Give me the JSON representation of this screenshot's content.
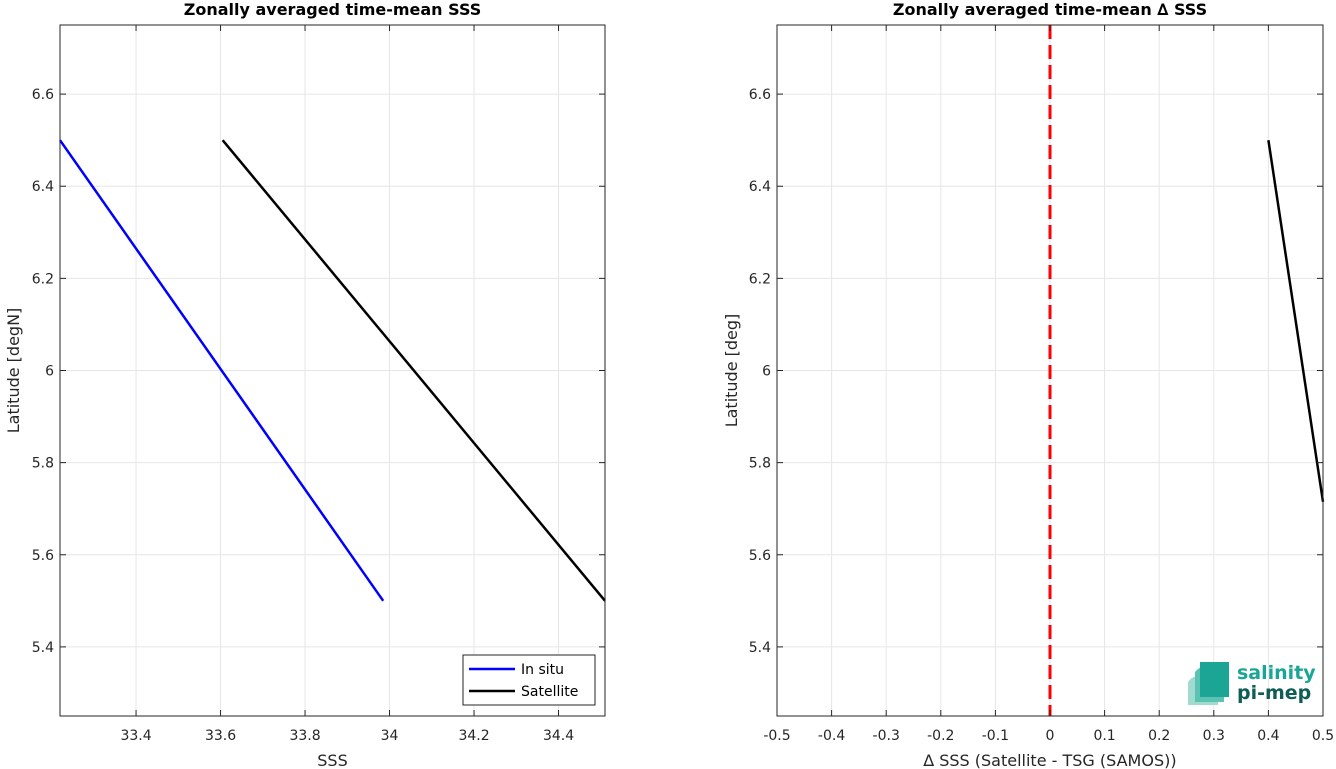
{
  "chart_data": [
    {
      "type": "line",
      "title": "Zonally averaged time-mean SSS",
      "xlabel": "SSS",
      "ylabel": "Latitude [degN]",
      "xlim": [
        33.22,
        34.51
      ],
      "ylim": [
        5.25,
        6.75
      ],
      "x_ticks": [
        "33.4",
        "33.6",
        "33.8",
        "34",
        "34.2",
        "34.4"
      ],
      "y_ticks": [
        "5.4",
        "5.6",
        "5.8",
        "6",
        "6.2",
        "6.4",
        "6.6"
      ],
      "grid": true,
      "legend_position": "bottom-right",
      "series": [
        {
          "name": "In situ",
          "color": "#0000ff",
          "x": [
            33.22,
            33.985
          ],
          "y": [
            6.5,
            5.5
          ]
        },
        {
          "name": "Satellite",
          "color": "#000000",
          "x": [
            33.605,
            34.51
          ],
          "y": [
            6.5,
            5.5
          ]
        }
      ]
    },
    {
      "type": "line",
      "title": "Zonally averaged time-mean ∆ SSS",
      "xlabel": "∆ SSS (Satellite - TSG (SAMOS))",
      "ylabel": "Latitude [deg]",
      "xlim": [
        -0.5,
        0.5
      ],
      "ylim": [
        5.25,
        6.75
      ],
      "x_ticks": [
        "-0.5",
        "-0.4",
        "-0.3",
        "-0.2",
        "-0.1",
        "0",
        "0.1",
        "0.2",
        "0.3",
        "0.4",
        "0.5"
      ],
      "y_ticks": [
        "5.4",
        "5.6",
        "5.8",
        "6",
        "6.2",
        "6.4",
        "6.6"
      ],
      "grid": true,
      "reference_line": {
        "x": 0,
        "color": "#ff0000",
        "style": "dashed"
      },
      "series": [
        {
          "color": "#000000",
          "x": [
            0.4,
            0.5
          ],
          "y": [
            6.5,
            5.715
          ]
        }
      ]
    }
  ],
  "logo": {
    "line1": "salinity",
    "line2": "pi-mep",
    "color": "#1aa595"
  }
}
